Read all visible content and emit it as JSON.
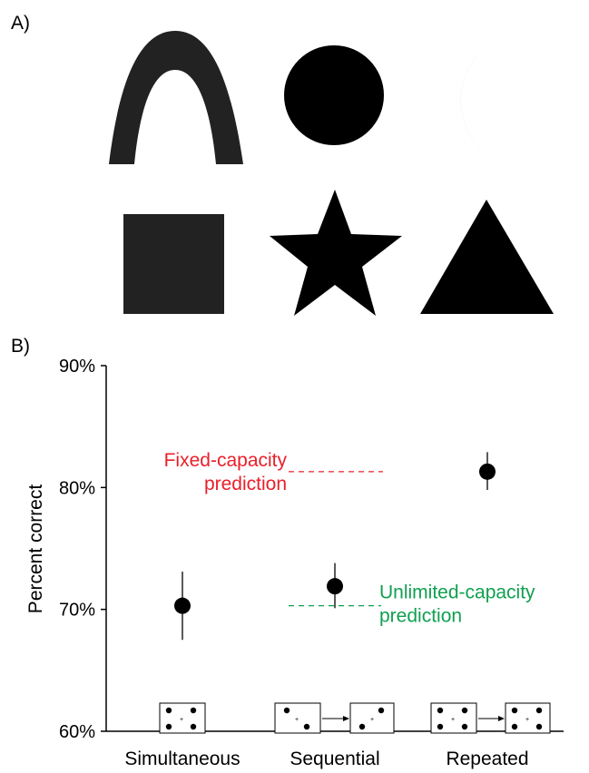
{
  "panel_a": {
    "label": "A)",
    "shapes": [
      "arch",
      "circle",
      "crescent",
      "square",
      "star",
      "triangle"
    ],
    "colors": {
      "arch": "#222222",
      "circle": "#000000",
      "crescent": "#000000",
      "square": "#222222",
      "star": "#000000",
      "triangle": "#000000"
    }
  },
  "panel_b": {
    "label": "B)"
  },
  "chart_data": {
    "type": "scatter",
    "title": "",
    "xlabel": "",
    "ylabel": "Percent correct",
    "ylim": [
      60,
      90
    ],
    "yticks": [
      "90%",
      "80%",
      "70%",
      "60%"
    ],
    "ytick_values": [
      90,
      80,
      70,
      60
    ],
    "categories": [
      "Simultaneous",
      "Sequential",
      "Repeated"
    ],
    "values": [
      70.3,
      71.9,
      81.3
    ],
    "errors": [
      [
        67.5,
        73.1
      ],
      [
        70.1,
        73.8
      ],
      [
        79.8,
        82.9
      ]
    ],
    "predictions": [
      {
        "text": [
          "Fixed-capacity",
          "prediction"
        ],
        "value": 81.3,
        "color": "#e8202a"
      },
      {
        "text": [
          "Unlimited-capacity",
          "prediction"
        ],
        "value": 70.3,
        "color": "#10a050"
      }
    ],
    "icons": [
      "single-display",
      "two-displays-sequential",
      "two-displays-repeated"
    ],
    "grid": false
  }
}
